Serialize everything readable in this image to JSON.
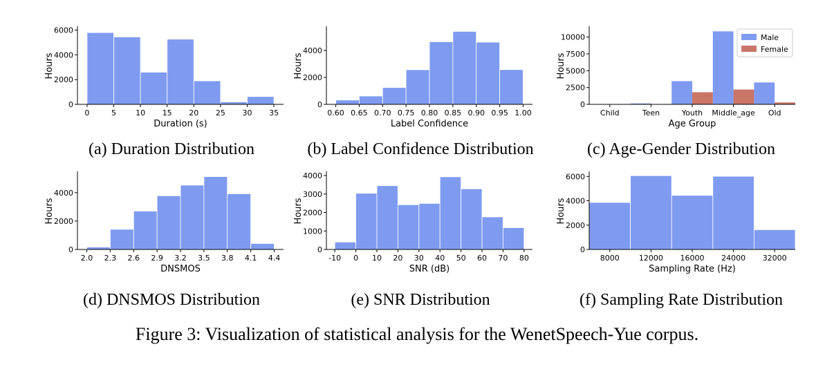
{
  "colors": {
    "male": "#7F9BF0",
    "female": "#C97568",
    "bar": "#7F9BF0"
  },
  "figure_caption": "Figure 3: Visualization of statistical analysis for the WenetSpeech-Yue corpus.",
  "chart_data": [
    {
      "id": "a",
      "type": "bar",
      "caption": "(a) Duration Distribution",
      "xlabel": "Duration (s)",
      "ylabel": "Hours",
      "bin_edges": [
        0,
        5,
        10,
        15,
        20,
        25,
        30,
        35
      ],
      "values": [
        5800,
        5450,
        2600,
        5270,
        1900,
        200,
        630
      ],
      "xlim": [
        -1.8,
        36.8
      ],
      "ylim": [
        0,
        6200
      ],
      "xticks": [
        0,
        5,
        10,
        15,
        20,
        25,
        30,
        35
      ],
      "xtick_labels": [
        "0",
        "5",
        "10",
        "15",
        "20",
        "25",
        "30",
        "35"
      ],
      "yticks": [
        0,
        2000,
        4000,
        6000
      ],
      "ytick_labels": [
        "0",
        "2000",
        "4000",
        "6000"
      ]
    },
    {
      "id": "b",
      "type": "bar",
      "caption": "(b) Label Confidence Distribution",
      "xlabel": "Label Confidence",
      "ylabel": "Hours",
      "bin_edges": [
        0.6,
        0.65,
        0.7,
        0.75,
        0.8,
        0.85,
        0.9,
        0.95,
        1.0
      ],
      "values": [
        320,
        620,
        1250,
        2570,
        4650,
        5420,
        4620,
        2580
      ],
      "xlim": [
        0.58,
        1.02
      ],
      "ylim": [
        0,
        5700
      ],
      "xticks": [
        0.6,
        0.65,
        0.7,
        0.75,
        0.8,
        0.85,
        0.9,
        0.95,
        1.0
      ],
      "xtick_labels": [
        "0.60",
        "0.65",
        "0.70",
        "0.75",
        "0.80",
        "0.85",
        "0.90",
        "0.95",
        "1.00"
      ],
      "yticks": [
        0,
        2000,
        4000
      ],
      "ytick_labels": [
        "0",
        "2000",
        "4000"
      ]
    },
    {
      "id": "c",
      "type": "bar",
      "caption": "(c) Age-Gender Distribution",
      "xlabel": "Age Group",
      "ylabel": "Hours",
      "categories": [
        "Child",
        "Teen",
        "Youth",
        "Middle_age",
        "Old"
      ],
      "series": [
        {
          "name": "Male",
          "values": [
            40,
            130,
            3450,
            10850,
            3250
          ]
        },
        {
          "name": "Female",
          "values": [
            30,
            50,
            1800,
            2200,
            280
          ]
        }
      ],
      "ylim": [
        0,
        11400
      ],
      "yticks": [
        0,
        2500,
        5000,
        7500,
        10000
      ],
      "ytick_labels": [
        "0",
        "2500",
        "5000",
        "7500",
        "10000"
      ],
      "legend": "top-right"
    },
    {
      "id": "d",
      "type": "bar",
      "caption": "(d) DNSMOS Distribution",
      "xlabel": "DNSMOS",
      "ylabel": "Hours",
      "bin_edges": [
        2.0,
        2.3,
        2.6,
        2.9,
        3.2,
        3.5,
        3.8,
        4.1,
        4.4
      ],
      "values": [
        170,
        1420,
        2700,
        3780,
        4530,
        5130,
        3920,
        420
      ],
      "xlim": [
        1.88,
        4.52
      ],
      "ylim": [
        0,
        5400
      ],
      "xticks": [
        2.0,
        2.3,
        2.6,
        2.9,
        3.2,
        3.5,
        3.8,
        4.1,
        4.4
      ],
      "xtick_labels": [
        "2.0",
        "2.3",
        "2.6",
        "2.9",
        "3.2",
        "3.5",
        "3.8",
        "4.1",
        "4.4"
      ],
      "yticks": [
        0,
        2000,
        4000
      ],
      "ytick_labels": [
        "0",
        "2000",
        "4000"
      ]
    },
    {
      "id": "e",
      "type": "bar",
      "caption": "(e) SNR Distribution",
      "xlabel": "SNR (dB)",
      "ylabel": "Hours",
      "bin_edges": [
        -10,
        0,
        10,
        20,
        30,
        40,
        50,
        60,
        70,
        80
      ],
      "values": [
        400,
        3040,
        3450,
        2420,
        2490,
        3930,
        3280,
        1760,
        1180
      ],
      "xlim": [
        -14,
        84
      ],
      "ylim": [
        0,
        4150
      ],
      "xticks": [
        -10,
        0,
        10,
        20,
        30,
        40,
        50,
        60,
        70,
        80
      ],
      "xtick_labels": [
        "-10",
        "0",
        "10",
        "20",
        "30",
        "40",
        "50",
        "60",
        "70",
        "80"
      ],
      "yticks": [
        0,
        1000,
        2000,
        3000,
        4000
      ],
      "ytick_labels": [
        "0",
        "1000",
        "2000",
        "3000",
        "4000"
      ]
    },
    {
      "id": "f",
      "type": "bar",
      "caption": "(f) Sampling Rate Distribution",
      "xlabel": "Sampling Rate (Hz)",
      "ylabel": "Hours",
      "categories": [
        "8000",
        "12000",
        "16000",
        "24000",
        "32000"
      ],
      "values": [
        3860,
        6060,
        4440,
        6010,
        1620
      ],
      "ylim": [
        0,
        6300
      ],
      "yticks": [
        0,
        2000,
        4000,
        6000
      ],
      "ytick_labels": [
        "0",
        "2000",
        "4000",
        "6000"
      ]
    }
  ]
}
